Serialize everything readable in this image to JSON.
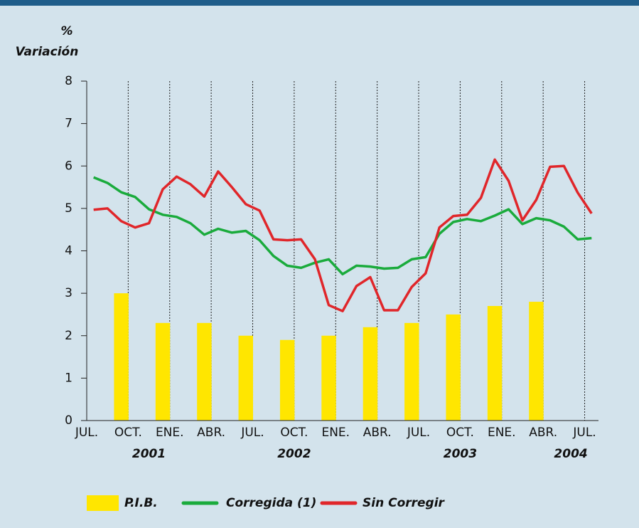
{
  "chart_data": {
    "type": "line",
    "y_label_unit": "%",
    "y_label": "Variación",
    "xlim": [
      0,
      37
    ],
    "ylim": [
      0,
      8
    ],
    "yticks": [
      0,
      1,
      2,
      3,
      4,
      5,
      6,
      7,
      8
    ],
    "xticks": [
      {
        "value": 0,
        "label": "JUL."
      },
      {
        "value": 3,
        "label": "OCT."
      },
      {
        "value": 6,
        "label": "ENE."
      },
      {
        "value": 9,
        "label": "ABR."
      },
      {
        "value": 12,
        "label": "JUL."
      },
      {
        "value": 15,
        "label": "OCT."
      },
      {
        "value": 18,
        "label": "ENE."
      },
      {
        "value": 21,
        "label": "ABR."
      },
      {
        "value": 24,
        "label": "JUL."
      },
      {
        "value": 27,
        "label": "OCT."
      },
      {
        "value": 30,
        "label": "ENE."
      },
      {
        "value": 33,
        "label": "ABR."
      },
      {
        "value": 36,
        "label": "JUL."
      }
    ],
    "year_labels": [
      {
        "value": 4.5,
        "label": "2001"
      },
      {
        "value": 15,
        "label": "2002"
      },
      {
        "value": 27,
        "label": "2003"
      },
      {
        "value": 35,
        "label": "2004"
      }
    ],
    "grid": true,
    "x": [
      0.5,
      1.5,
      2.5,
      3.5,
      4.5,
      5.5,
      6.5,
      7.5,
      8.5,
      9.5,
      10.5,
      11.5,
      12.5,
      13.5,
      14.5,
      15.5,
      16.5,
      17.5,
      18.5,
      19.5,
      20.5,
      21.5,
      22.5,
      23.5,
      24.5,
      25.5,
      26.5,
      27.5,
      28.5,
      29.5,
      30.5,
      31.5,
      32.5,
      33.5,
      34.5,
      35.5,
      36.5
    ],
    "series": [
      {
        "name": "P.I.B.",
        "type": "bar",
        "color": "#ffe600",
        "x": [
          2.5,
          5.5,
          8.5,
          11.5,
          14.5,
          17.5,
          20.5,
          23.5,
          26.5,
          29.5,
          32.5
        ],
        "values": [
          3.0,
          2.3,
          2.3,
          2.0,
          1.9,
          2.0,
          2.2,
          2.3,
          2.5,
          2.7,
          2.8
        ]
      },
      {
        "name": "Corregida (1)",
        "type": "line",
        "color": "#1aab3c",
        "values": [
          5.73,
          5.6,
          5.38,
          5.27,
          4.98,
          4.85,
          4.8,
          4.65,
          4.38,
          4.52,
          4.43,
          4.47,
          4.25,
          3.88,
          3.65,
          3.6,
          3.72,
          3.8,
          3.45,
          3.65,
          3.63,
          3.58,
          3.6,
          3.8,
          3.85,
          4.4,
          4.68,
          4.75,
          4.7,
          4.83,
          4.98,
          4.63,
          4.77,
          4.72,
          4.57,
          4.27,
          4.3
        ]
      },
      {
        "name": "Sin Corregir",
        "type": "line",
        "color": "#e0262a",
        "values": [
          4.97,
          5.0,
          4.7,
          4.55,
          4.65,
          5.45,
          5.75,
          5.57,
          5.28,
          5.87,
          5.5,
          5.1,
          4.95,
          4.27,
          4.25,
          4.27,
          3.8,
          2.72,
          2.58,
          3.17,
          3.38,
          2.6,
          2.6,
          3.15,
          3.47,
          4.55,
          4.82,
          4.85,
          5.25,
          6.15,
          5.65,
          4.72,
          5.2,
          5.98,
          6.0,
          5.37,
          4.88
        ]
      }
    ]
  }
}
